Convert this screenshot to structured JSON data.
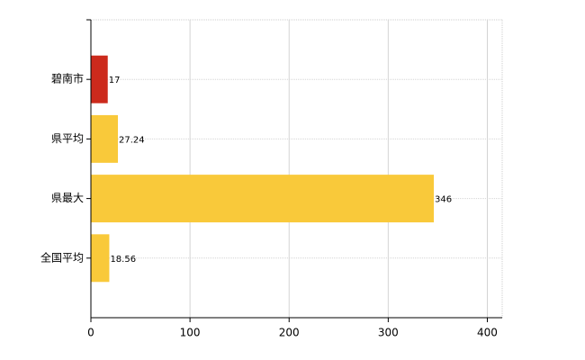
{
  "chart_data": {
    "type": "bar",
    "orientation": "horizontal",
    "categories": [
      "碧南市",
      "県平均",
      "県最大",
      "全国平均"
    ],
    "values": [
      17,
      27.24,
      346,
      18.56
    ],
    "colors": [
      "#cc2a1c",
      "#f9c93a",
      "#f9c93a",
      "#f9c93a"
    ],
    "xlim": [
      0,
      415
    ],
    "xticks": [
      0,
      100,
      200,
      300,
      400
    ],
    "grid": true,
    "data_labels": true
  }
}
